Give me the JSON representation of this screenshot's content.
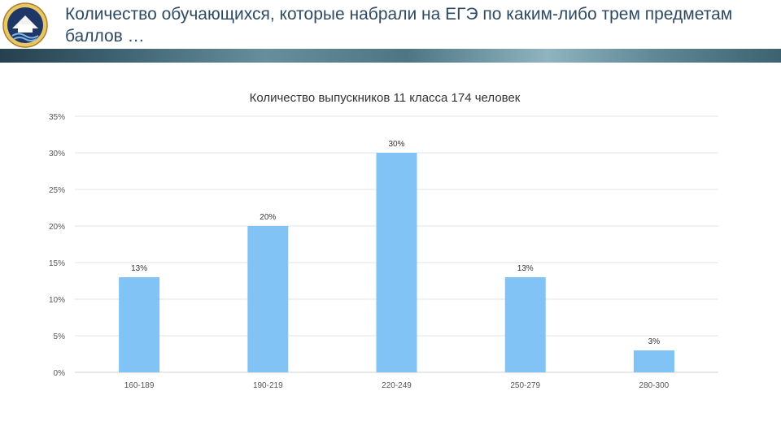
{
  "slide": {
    "title": "Количество обучающихся, которые набрали на ЕГЭ по каким-либо трем предметам баллов …"
  },
  "logo": {
    "icon": "school-emblem-icon"
  },
  "colors": {
    "bar": "#82c3f6",
    "header_text": "#2f4a63",
    "grid": "#e3e3e3"
  },
  "chart_data": {
    "type": "bar",
    "title": "Количество выпускников 11 класса 174 человек",
    "categories": [
      "160-189",
      "190-219",
      "220-249",
      "250-279",
      "280-300"
    ],
    "values": [
      13,
      20,
      30,
      13,
      3
    ],
    "data_labels": [
      "13%",
      "20%",
      "30%",
      "13%",
      "3%"
    ],
    "y_ticks": [
      "0%",
      "5%",
      "10%",
      "15%",
      "20%",
      "25%",
      "30%",
      "35%"
    ],
    "ylim": [
      0,
      35
    ],
    "xlabel": "",
    "ylabel": "",
    "grid": true,
    "legend": "none"
  }
}
